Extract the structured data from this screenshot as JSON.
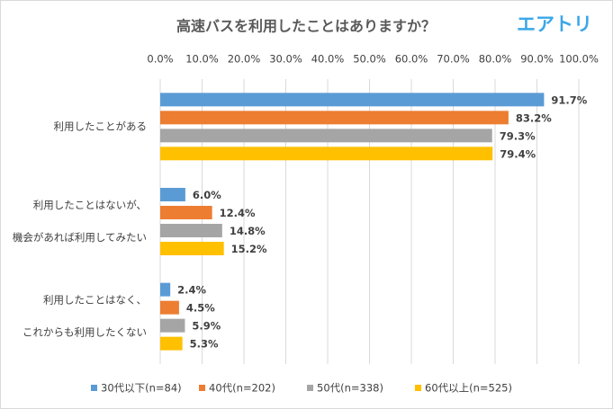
{
  "logo": "エアトリ",
  "chart_data": {
    "type": "bar",
    "orientation": "horizontal",
    "title": "高速バスを利用したことはありますか？",
    "categories": [
      [
        "利用したことがある"
      ],
      [
        "利用したことはないが、",
        "機会があれば利用してみたい"
      ],
      [
        "利用したことはなく、",
        "これからも利用したくない"
      ]
    ],
    "series": [
      {
        "name": "30代以下(n=84)",
        "color": "#5b9bd5",
        "values": [
          91.7,
          6.0,
          2.4
        ],
        "value_labels": [
          "91.7%",
          "6.0%",
          "2.4%"
        ]
      },
      {
        "name": "40代(n=202)",
        "color": "#ed7d31",
        "values": [
          83.2,
          12.4,
          4.5
        ],
        "value_labels": [
          "83.2%",
          "12.4%",
          "4.5%"
        ]
      },
      {
        "name": "50代(n=338)",
        "color": "#a5a5a5",
        "values": [
          79.3,
          14.8,
          5.9
        ],
        "value_labels": [
          "79.3%",
          "14.8%",
          "5.9%"
        ]
      },
      {
        "name": "60代以上(n=525)",
        "color": "#ffc000",
        "values": [
          79.4,
          15.2,
          5.3
        ],
        "value_labels": [
          "79.4%",
          "15.2%",
          "5.3%"
        ]
      }
    ],
    "xlim": [
      0,
      100
    ],
    "xticks": [
      {
        "value": 0,
        "label": "0.0%"
      },
      {
        "value": 10,
        "label": "10.0%"
      },
      {
        "value": 20,
        "label": "20.0%"
      },
      {
        "value": 30,
        "label": "30.0%"
      },
      {
        "value": 40,
        "label": "40.0%"
      },
      {
        "value": 50,
        "label": "50.0%"
      },
      {
        "value": 60,
        "label": "60.0%"
      },
      {
        "value": 70,
        "label": "70.0%"
      },
      {
        "value": 80,
        "label": "80.0%"
      },
      {
        "value": 90,
        "label": "90.0%"
      },
      {
        "value": 100,
        "label": "100.0%"
      }
    ],
    "grid": true,
    "legend": "bottom"
  }
}
